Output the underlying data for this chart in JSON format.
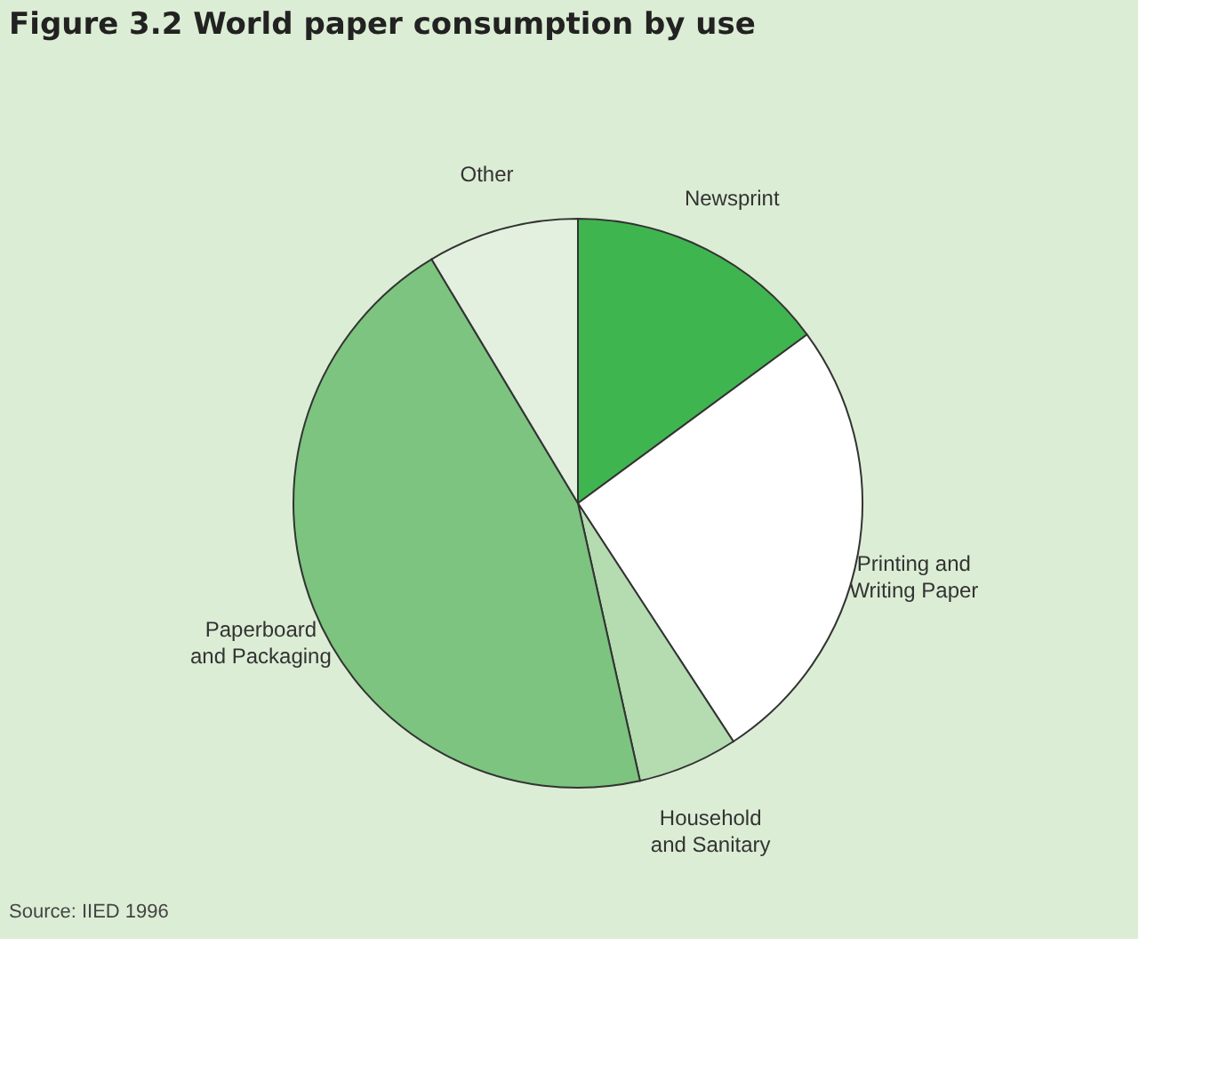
{
  "chart_data": {
    "type": "pie",
    "title": "Figure 3.2     World paper consumption by use",
    "categories": [
      "Newsprint",
      "Printing and Writing Paper",
      "Household and Sanitary",
      "Paperboard and Packaging",
      "Other"
    ],
    "values": [
      14.9,
      25.9,
      5.7,
      44.9,
      8.6
    ],
    "colors": [
      "#3fb54f",
      "#ffffff",
      "#b5dcb0",
      "#7cc47f",
      "#e3f0df"
    ],
    "annotations": [
      "Source: IIED 1996"
    ],
    "legend": false
  }
}
